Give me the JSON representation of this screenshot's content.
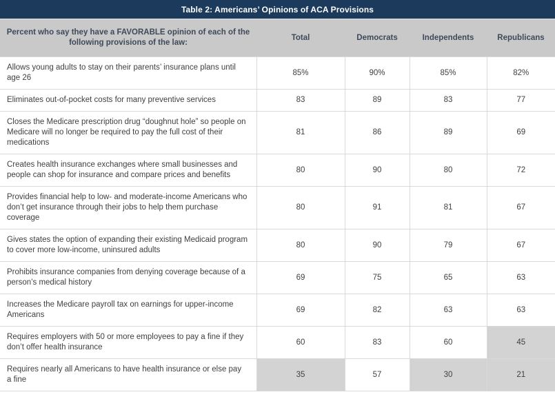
{
  "chart_data": {
    "type": "table",
    "title": "Table 2: Americans’ Opinions of ACA Provisions",
    "row_header": "Percent who say they have a FAVORABLE opinion of each of the following provisions of the law:",
    "columns": [
      "Total",
      "Democrats",
      "Independents",
      "Republicans"
    ],
    "rows": [
      {
        "provision": "Allows young adults to stay on their parents’ insurance plans until age 26",
        "values": [
          "85%",
          "90%",
          "85%",
          "82%"
        ],
        "shaded": [
          false,
          false,
          false,
          false
        ]
      },
      {
        "provision": "Eliminates out-of-pocket costs for many preventive services",
        "values": [
          "83",
          "89",
          "83",
          "77"
        ],
        "shaded": [
          false,
          false,
          false,
          false
        ]
      },
      {
        "provision": "Closes the Medicare prescription drug “doughnut hole” so people on Medicare will no longer be required to pay the full cost of their medications",
        "values": [
          "81",
          "86",
          "89",
          "69"
        ],
        "shaded": [
          false,
          false,
          false,
          false
        ]
      },
      {
        "provision": "Creates health insurance exchanges where small businesses and people can shop for insurance and compare prices and benefits",
        "values": [
          "80",
          "90",
          "80",
          "72"
        ],
        "shaded": [
          false,
          false,
          false,
          false
        ]
      },
      {
        "provision": "Provides financial help to low- and moderate-income Americans who don’t get insurance through their jobs to help them purchase coverage",
        "values": [
          "80",
          "91",
          "81",
          "67"
        ],
        "shaded": [
          false,
          false,
          false,
          false
        ]
      },
      {
        "provision": "Gives states the option of expanding their existing Medicaid program to cover more low-income, uninsured adults",
        "values": [
          "80",
          "90",
          "79",
          "67"
        ],
        "shaded": [
          false,
          false,
          false,
          false
        ]
      },
      {
        "provision": "Prohibits insurance companies from denying coverage because of a person’s medical history",
        "values": [
          "69",
          "75",
          "65",
          "63"
        ],
        "shaded": [
          false,
          false,
          false,
          false
        ]
      },
      {
        "provision": "Increases the Medicare payroll tax on earnings for upper-income Americans",
        "values": [
          "69",
          "82",
          "63",
          "63"
        ],
        "shaded": [
          false,
          false,
          false,
          false
        ]
      },
      {
        "provision": "Requires employers with 50 or more employees to pay a fine if they don’t offer health insurance",
        "values": [
          "60",
          "83",
          "60",
          "45"
        ],
        "shaded": [
          false,
          false,
          false,
          true
        ]
      },
      {
        "provision": "Requires nearly all Americans to have health insurance or else pay a fine",
        "values": [
          "35",
          "57",
          "30",
          "21"
        ],
        "shaded": [
          true,
          false,
          true,
          true
        ]
      }
    ]
  },
  "colors": {
    "navy": "#1b3a5c",
    "header_gray": "#c9c9c9",
    "header_text": "#3e4a59",
    "body_text": "#3f3f3f",
    "border": "#d9d9d9",
    "shaded_cell": "#d3d3d3"
  }
}
